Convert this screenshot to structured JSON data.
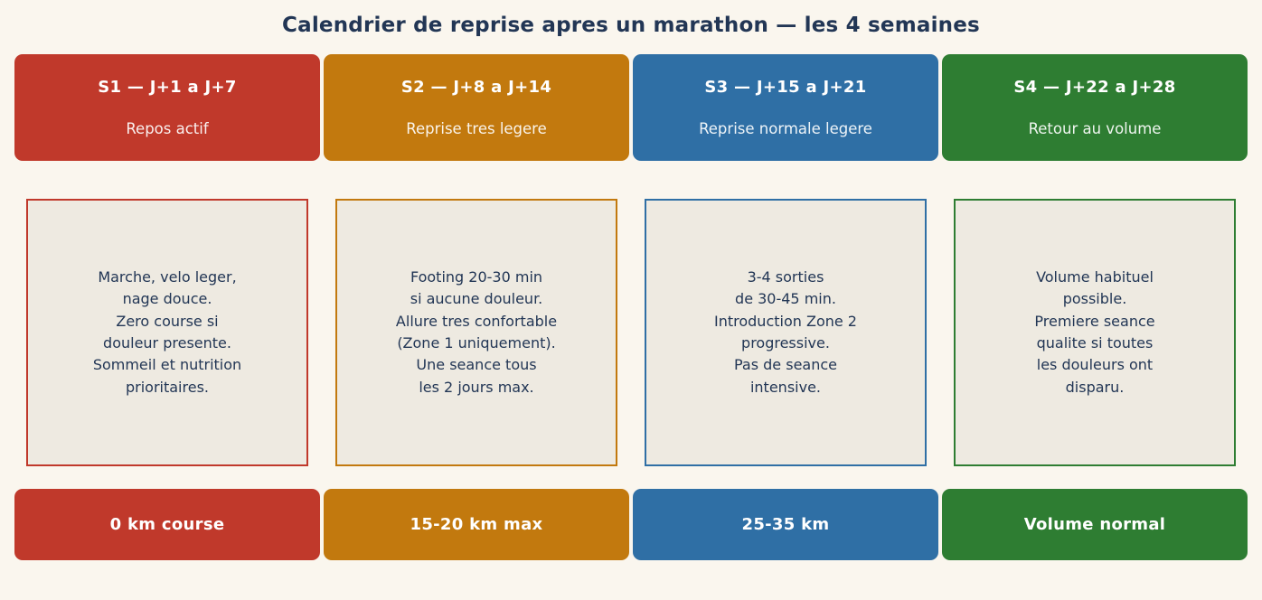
{
  "title": "Calendrier de reprise apres un marathon — les 4 semaines",
  "colors": {
    "page_background": "#faf6ee",
    "panel_background": "#eeeae1",
    "text_dark": "#223655",
    "red": "#c0392b",
    "orange": "#c2790e",
    "blue": "#2f6fa5",
    "green": "#2e7d32"
  },
  "weeks": [
    {
      "header": "S1 — J+1 a J+7",
      "subtitle": "Repos actif",
      "body": "Marche, velo leger,\nnage douce.\nZero course si\ndouleur presente.\nSommeil et nutrition\nprioritaires.",
      "footer": "0 km course",
      "color": "#c0392b"
    },
    {
      "header": "S2 — J+8 a J+14",
      "subtitle": "Reprise tres legere",
      "body": "Footing 20-30 min\nsi aucune douleur.\nAllure tres confortable\n(Zone 1 uniquement).\nUne seance tous\nles 2 jours max.",
      "footer": "15-20 km max",
      "color": "#c2790e"
    },
    {
      "header": "S3 — J+15 a J+21",
      "subtitle": "Reprise normale legere",
      "body": "3-4 sorties\nde 30-45 min.\nIntroduction Zone 2\nprogressive.\nPas de seance\nintensive.",
      "footer": "25-35 km",
      "color": "#2f6fa5"
    },
    {
      "header": "S4 — J+22 a J+28",
      "subtitle": "Retour au volume",
      "body": "Volume habituel\npossible.\nPremiere seance\nqualite si toutes\nles douleurs ont\ndisparu.",
      "footer": "Volume normal",
      "color": "#2e7d32"
    }
  ]
}
